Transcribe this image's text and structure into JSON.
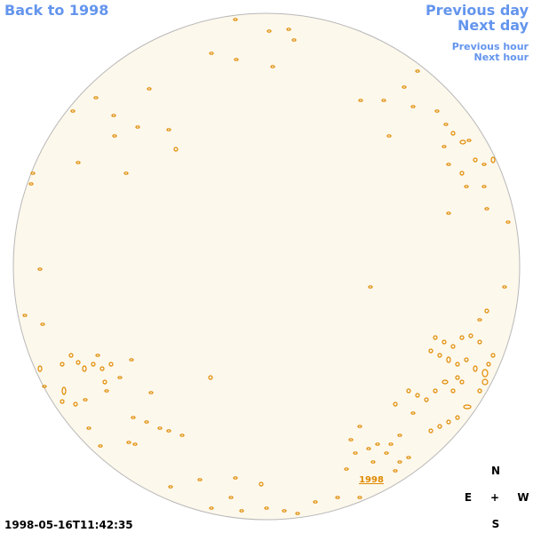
{
  "navigation": {
    "back_to_year": "Back to 1998",
    "previous_day": "Previous day",
    "next_day": "Next day",
    "previous_hour": "Previous hour",
    "next_hour": "Next hour"
  },
  "disk": {
    "year_link": "1998"
  },
  "compass": {
    "north": "N",
    "east": "E",
    "center": "+",
    "west": "W",
    "south": "S"
  },
  "timestamp": "1998-05-16T11:42:35"
}
